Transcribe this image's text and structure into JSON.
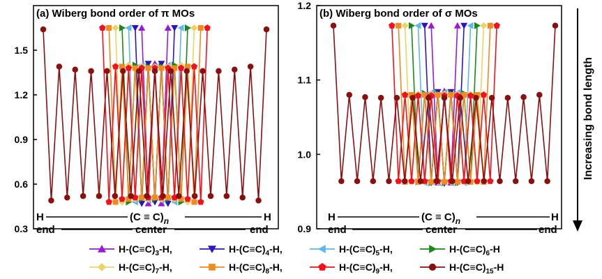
{
  "chart_data": [
    {
      "type": "line",
      "title": "(a) Wiberg bond order of π MOs",
      "ylim": [
        0.3,
        1.8
      ],
      "yticks": [
        "0.3",
        "0.6",
        "0.9",
        "1.2",
        "1.5"
      ],
      "x_axis": {
        "left_atom": "H",
        "right_atom": "H",
        "chain": "(C ≡ C)",
        "chain_sub": "n",
        "end_left": "end",
        "center": "center",
        "end_right": "end"
      },
      "series": [
        {
          "name": "H-(C≡C)3-H",
          "values": [
            1.65,
            0.47,
            1.41,
            0.47,
            1.65
          ]
        },
        {
          "name": "H-(C≡C)4-H",
          "values": [
            1.65,
            0.47,
            1.41,
            0.48,
            1.41,
            0.47,
            1.65
          ]
        },
        {
          "name": "H-(C≡C)5-H",
          "values": [
            1.65,
            0.48,
            1.4,
            0.49,
            1.39,
            0.49,
            1.4,
            0.48,
            1.65
          ]
        },
        {
          "name": "H-(C≡C)6-H",
          "values": [
            1.65,
            0.48,
            1.4,
            0.5,
            1.39,
            0.5,
            1.39,
            0.5,
            1.4,
            0.48,
            1.65
          ]
        },
        {
          "name": "H-(C≡C)7-H",
          "values": [
            1.65,
            0.48,
            1.4,
            0.5,
            1.39,
            0.5,
            1.39,
            0.5,
            1.39,
            0.5,
            1.4,
            0.48,
            1.65
          ]
        },
        {
          "name": "H-(C≡C)8-H",
          "values": [
            1.65,
            0.48,
            1.39,
            0.5,
            1.38,
            0.51,
            1.38,
            0.51,
            1.38,
            0.51,
            1.38,
            0.5,
            1.39,
            0.48,
            1.65
          ]
        },
        {
          "name": "H-(C≡C)9-H",
          "values": [
            1.65,
            0.48,
            1.39,
            0.5,
            1.38,
            0.51,
            1.38,
            0.51,
            1.38,
            0.51,
            1.38,
            0.51,
            1.38,
            0.5,
            1.39,
            0.48,
            1.65
          ]
        },
        {
          "name": "H-(C≡C)15-H",
          "values": [
            1.64,
            0.49,
            1.39,
            0.51,
            1.37,
            0.52,
            1.36,
            0.52,
            1.36,
            0.52,
            1.36,
            0.52,
            1.36,
            0.52,
            1.36,
            0.52,
            1.36,
            0.52,
            1.36,
            0.52,
            1.36,
            0.52,
            1.36,
            0.52,
            1.37,
            0.51,
            1.39,
            0.49,
            1.64
          ]
        }
      ]
    },
    {
      "type": "line",
      "title": "(b) Wiberg bond order of σ MOs",
      "ylim": [
        0.9,
        1.2
      ],
      "yticks": [
        "0.9",
        "1.0",
        "1.1",
        "1.2"
      ],
      "x_axis": {
        "left_atom": "H",
        "right_atom": "H",
        "chain": "(C ≡ C)",
        "chain_sub": "n",
        "end_left": "end",
        "center": "center",
        "end_right": "end"
      },
      "series": [
        {
          "name": "H-(C≡C)3-H",
          "values": [
            1.173,
            0.962,
            1.085,
            0.962,
            1.173
          ]
        },
        {
          "name": "H-(C≡C)4-H",
          "values": [
            1.173,
            0.962,
            1.084,
            0.961,
            1.084,
            0.962,
            1.173
          ]
        },
        {
          "name": "H-(C≡C)5-H",
          "values": [
            1.173,
            0.962,
            1.083,
            0.962,
            1.083,
            0.962,
            1.083,
            0.962,
            1.173
          ]
        },
        {
          "name": "H-(C≡C)6-H",
          "values": [
            1.173,
            0.963,
            1.082,
            0.962,
            1.082,
            0.962,
            1.082,
            0.962,
            1.082,
            0.963,
            1.173
          ]
        },
        {
          "name": "H-(C≡C)7-H",
          "values": [
            1.173,
            0.963,
            1.081,
            0.963,
            1.081,
            0.963,
            1.081,
            0.963,
            1.081,
            0.963,
            1.081,
            0.963,
            1.173
          ]
        },
        {
          "name": "H-(C≡C)8-H",
          "values": [
            1.173,
            0.963,
            1.08,
            0.963,
            1.08,
            0.963,
            1.08,
            0.963,
            1.08,
            0.963,
            1.08,
            0.963,
            1.08,
            0.963,
            1.173
          ]
        },
        {
          "name": "H-(C≡C)9-H",
          "values": [
            1.173,
            0.964,
            1.08,
            0.964,
            1.079,
            0.964,
            1.079,
            0.964,
            1.079,
            0.964,
            1.079,
            0.964,
            1.079,
            0.964,
            1.08,
            0.964,
            1.173
          ]
        },
        {
          "name": "H-(C≡C)15-H",
          "values": [
            1.173,
            0.964,
            1.08,
            0.964,
            1.077,
            0.964,
            1.076,
            0.964,
            1.076,
            0.964,
            1.076,
            0.964,
            1.076,
            0.964,
            1.076,
            0.964,
            1.076,
            0.964,
            1.076,
            0.964,
            1.076,
            0.964,
            1.076,
            0.964,
            1.077,
            0.964,
            1.08,
            0.964,
            1.173
          ]
        }
      ]
    }
  ],
  "side_label": "Increasing bond length",
  "legend": [
    {
      "prefix": "H-(C≡C)",
      "sub": "3",
      "suffix": "-H,",
      "color": "#9b19d6",
      "marker": "triangle-up"
    },
    {
      "prefix": "H-(C≡C)",
      "sub": "4",
      "suffix": "-H,",
      "color": "#2a15c4",
      "marker": "triangle-down"
    },
    {
      "prefix": "H-(C≡C)",
      "sub": "5",
      "suffix": "-H,",
      "color": "#5cb8ee",
      "marker": "triangle-left"
    },
    {
      "prefix": "H-(C≡C)",
      "sub": "6",
      "suffix": "-H",
      "color": "#178a17",
      "marker": "triangle-right"
    },
    {
      "prefix": "H-(C≡C)",
      "sub": "7",
      "suffix": "-H,",
      "color": "#ecd463",
      "marker": "diamond"
    },
    {
      "prefix": "H-(C≡C)",
      "sub": "8",
      "suffix": "-H,",
      "color": "#f28a1e",
      "marker": "square"
    },
    {
      "prefix": "H-(C≡C)",
      "sub": "9",
      "suffix": "-H,",
      "color": "#f5101a",
      "marker": "pentagon"
    },
    {
      "prefix": "H-(C≡C)",
      "sub": "15",
      "suffix": "-H",
      "color": "#8b0f0f",
      "marker": "circle"
    }
  ]
}
